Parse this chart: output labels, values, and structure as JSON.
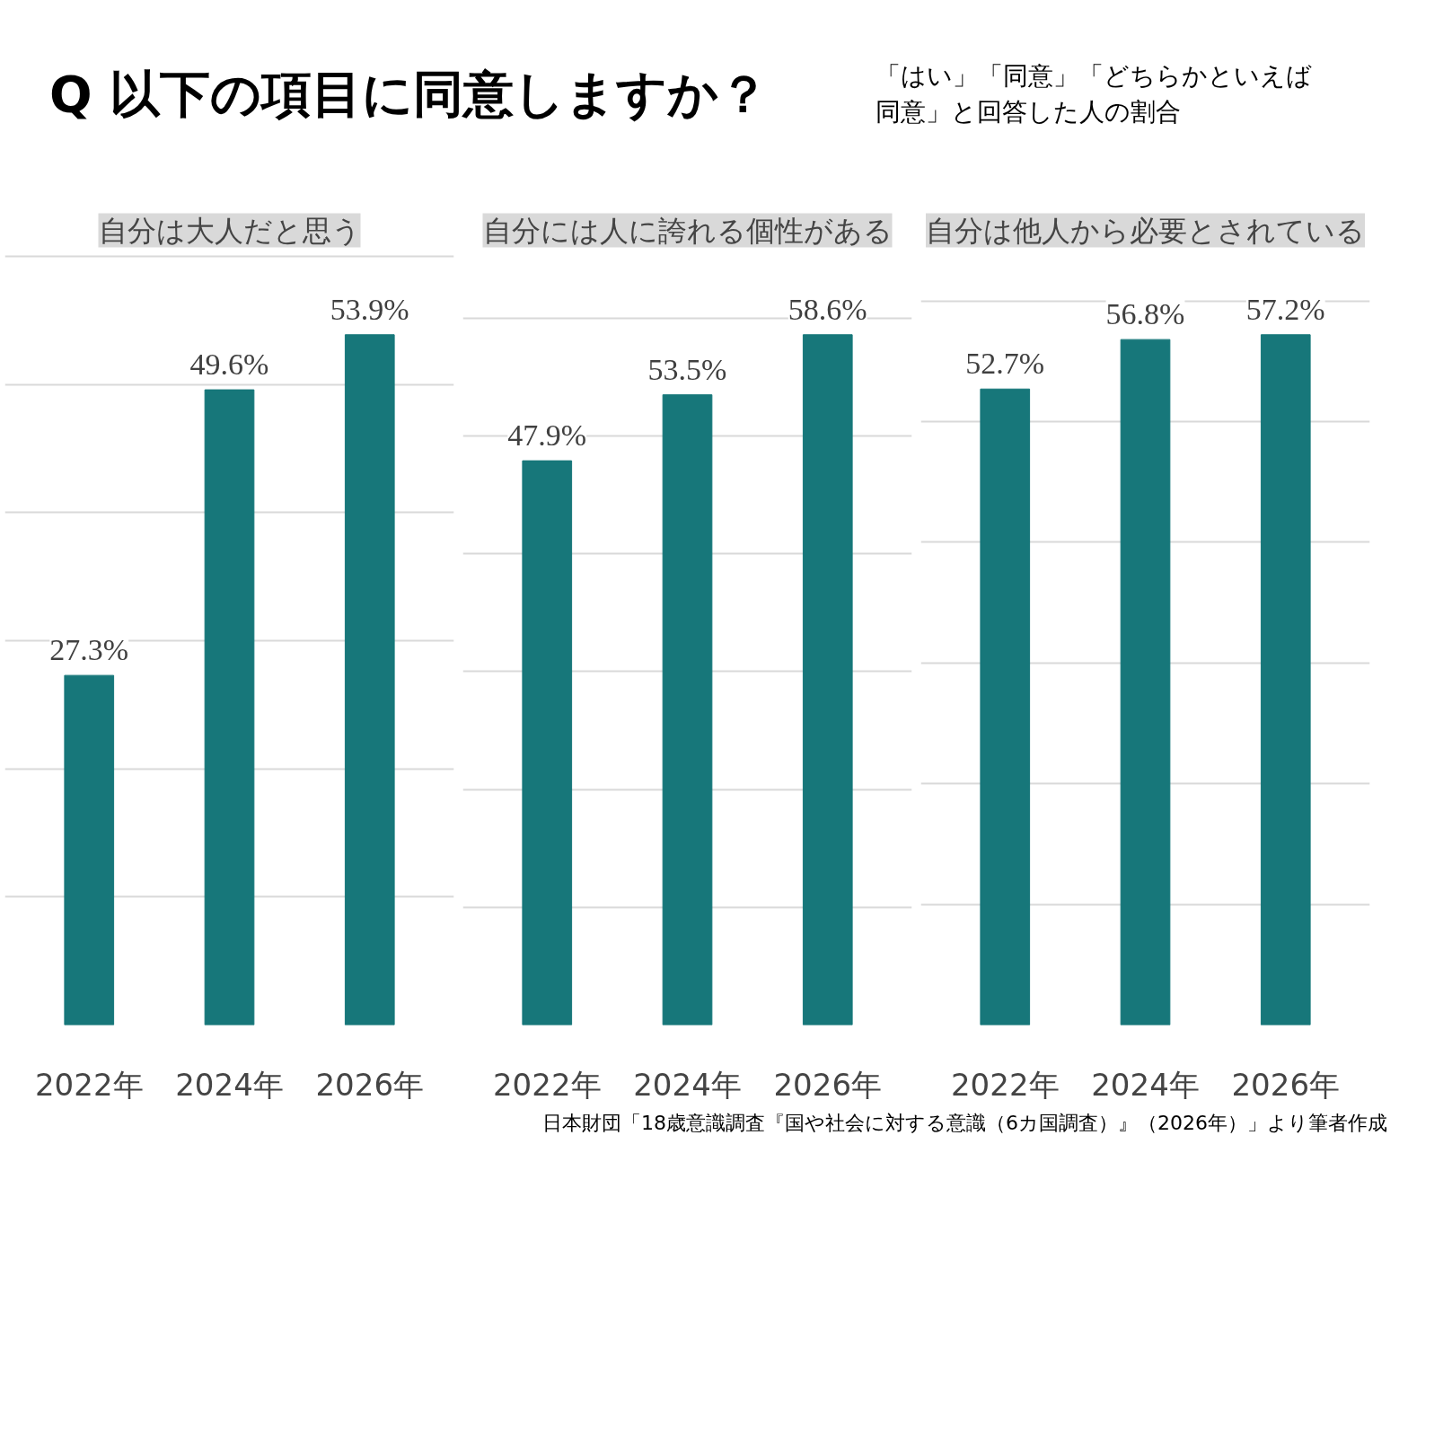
{
  "chart_data": [
    {
      "type": "other",
      "title": "Q 以下の項目に同意しますか？",
      "subtitle": "「はい」「同意」「どちらかといえば同意」と回答した人の割合",
      "annotations": [
        "日本財団「18歳意識調査『国や社会に対する意識（6カ国調査）』（2026年）」より筆者作成"
      ]
    },
    {
      "type": "bar",
      "title": "自分は大人だと思う",
      "categories": [
        "2022年",
        "2024年",
        "2026年"
      ],
      "values": [
        27.3,
        49.6,
        53.9
      ],
      "color": "#17777a",
      "value_labels": [
        "27.3%",
        "49.6%",
        "53.9%"
      ],
      "grid": "y",
      "tick_labels": "x"
    },
    {
      "type": "bar",
      "title": "自分には人に誇れる個性がある",
      "categories": [
        "2022年",
        "2024年",
        "2026年"
      ],
      "values": [
        47.9,
        53.5,
        58.6
      ],
      "color": "#17777a",
      "value_labels": [
        "47.9%",
        "53.5%",
        "58.6%"
      ],
      "grid": "y",
      "tick_labels": "x"
    },
    {
      "type": "bar",
      "title": "自分は他人から必要とされている",
      "categories": [
        "2022年",
        "2024年",
        "2026年"
      ],
      "values": [
        52.7,
        56.8,
        57.2
      ],
      "color": "#17777a",
      "value_labels": [
        "52.7%",
        "56.8%",
        "57.2%"
      ],
      "grid": "y",
      "tick_labels": "x"
    }
  ]
}
